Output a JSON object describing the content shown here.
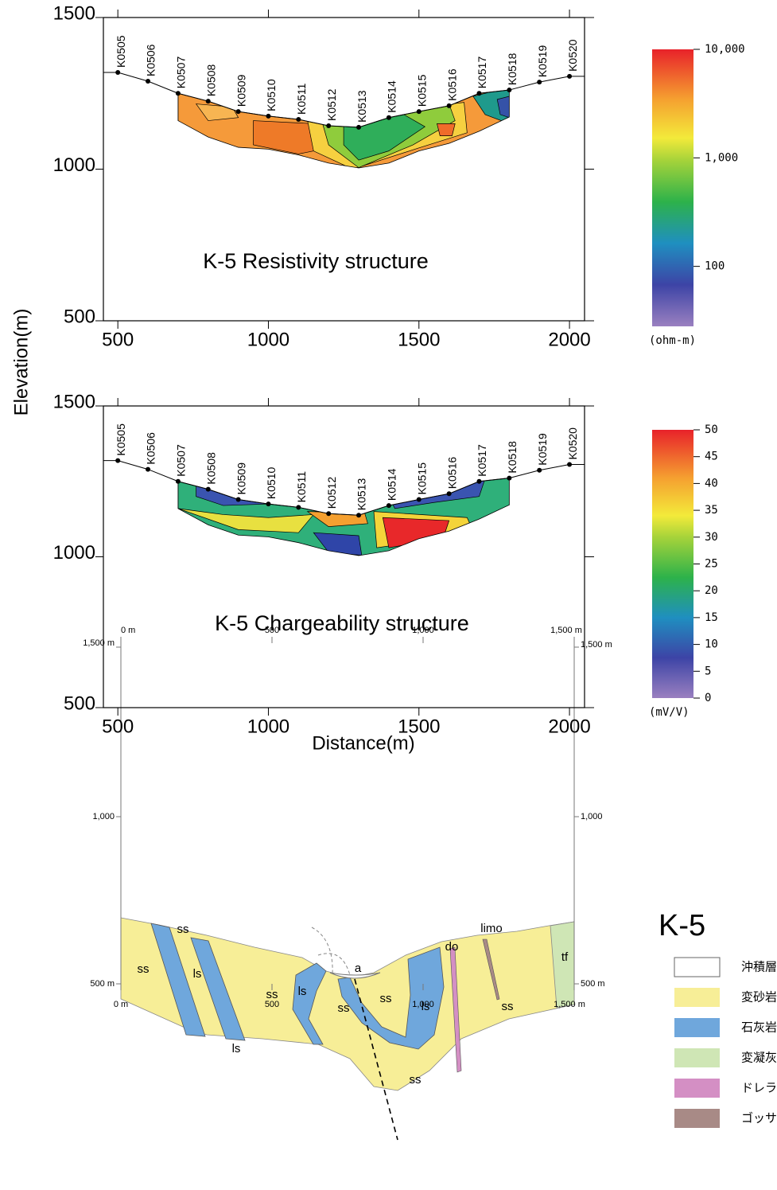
{
  "chart_data": [
    {
      "type": "contour",
      "title": "K-5 Resistivity structure",
      "ylabel": "Elevation(m)",
      "xlim": [
        452,
        2050
      ],
      "ylim": [
        500,
        1500
      ],
      "xticks": [
        500,
        1000,
        1500,
        2000
      ],
      "yticks": [
        500,
        1000,
        1500
      ],
      "stations": [
        "K0505",
        "K0506",
        "K0507",
        "K0508",
        "K0509",
        "K0510",
        "K0511",
        "K0512",
        "K0513",
        "K0514",
        "K0515",
        "K0516",
        "K0517",
        "K0518",
        "K0519",
        "K0520"
      ],
      "x": [
        500,
        600,
        700,
        800,
        900,
        1000,
        1100,
        1200,
        1300,
        1400,
        1500,
        1600,
        1700,
        1800,
        1900,
        2000
      ],
      "values": [
        1319,
        1290,
        1250,
        1224,
        1190,
        1175,
        1164,
        1143,
        1138,
        1170,
        1190,
        1209,
        1250,
        1261,
        1287,
        1306
      ],
      "colorbar": {
        "log": true,
        "range": [
          28,
          10000
        ],
        "ticks": [
          {
            "value": 10000,
            "label": "10,000"
          },
          {
            "value": 1000,
            "label": "1,000"
          },
          100
        ],
        "unit": "(ohm-m)"
      }
    },
    {
      "type": "contour",
      "title": "K-5 Chargeability structure",
      "xlabel": "Distance(m)",
      "xlim": [
        452,
        2050
      ],
      "ylim": [
        500,
        1500
      ],
      "xticks": [
        500,
        1000,
        1500,
        2000
      ],
      "yticks": [
        500,
        1000,
        1500
      ],
      "stations": [
        "K0505",
        "K0506",
        "K0507",
        "K0508",
        "K0509",
        "K0510",
        "K0511",
        "K0512",
        "K0513",
        "K0514",
        "K0515",
        "K0516",
        "K0517",
        "K0518",
        "K0519",
        "K0520"
      ],
      "x": [
        500,
        600,
        700,
        800,
        900,
        1000,
        1100,
        1200,
        1300,
        1400,
        1500,
        1600,
        1700,
        1800,
        1900,
        2000
      ],
      "values": [
        1319,
        1290,
        1250,
        1224,
        1190,
        1175,
        1164,
        1143,
        1138,
        1170,
        1190,
        1209,
        1250,
        1261,
        1287,
        1306
      ],
      "colorbar": {
        "log": false,
        "range": [
          0,
          50
        ],
        "ticks": [
          50,
          45,
          40,
          35,
          30,
          25,
          20,
          15,
          10,
          5,
          0
        ],
        "unit": "(mV/V)"
      }
    }
  ],
  "cross_section": {
    "title": "K-5",
    "top_labels": [
      "0 m",
      "500",
      "1,000",
      "1,500 m"
    ],
    "bottom_labels": [
      "0 m",
      "500",
      "1,000",
      "1,500 m"
    ],
    "left_labels": [
      "1,500 m",
      "1,000",
      "500 m"
    ],
    "right_labels": [
      "1,500 m",
      "1,000",
      "500 m"
    ],
    "units": [
      "ss",
      "ss",
      "ls",
      "ls",
      "ss",
      "ls",
      "ss",
      "a",
      "ss",
      "ls",
      "ss",
      "do",
      "limo",
      "ss",
      "tf"
    ],
    "legend": [
      "沖積層",
      "変砂岩",
      "石灰岩",
      "変凝灰岩",
      "ドレライト",
      "ゴッサン"
    ]
  }
}
